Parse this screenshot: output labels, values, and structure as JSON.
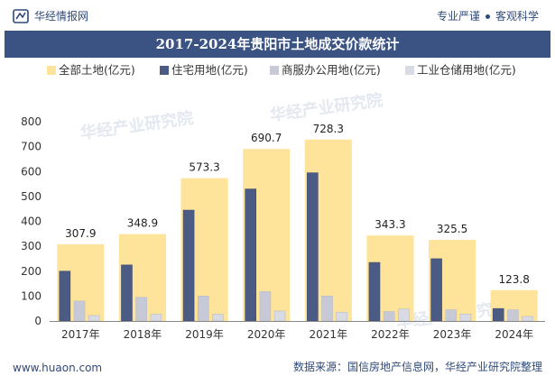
{
  "header": {
    "brand": "华经情报网",
    "tagline_left": "专业严谨",
    "tagline_right": "客观科学"
  },
  "watermark": "华经产业研究院",
  "footer": {
    "url": "www.huaon.com",
    "source": "数据来源：国信房地产信息网，华经产业研究院整理"
  },
  "colors": {
    "total": "#fde49a",
    "residential": "#4b5b83",
    "commercial": "#c7cad6",
    "industrial": "#d9dbe4",
    "title_bg": "#3a5383"
  },
  "chart_data": {
    "type": "bar",
    "title": "2017-2024年贵阳市土地成交价款统计",
    "categories": [
      "2017年",
      "2018年",
      "2019年",
      "2020年",
      "2021年",
      "2022年",
      "2023年",
      "2024年"
    ],
    "series": [
      {
        "name": "全部土地(亿元)",
        "values": [
          307.9,
          348.9,
          573.3,
          690.7,
          728.3,
          343.3,
          325.5,
          123.8
        ]
      },
      {
        "name": "住宅用地(亿元)",
        "values": [
          200,
          225,
          445,
          530,
          595,
          235,
          250,
          50
        ]
      },
      {
        "name": "商服办公用地(亿元)",
        "values": [
          80,
          95,
          100,
          118,
          100,
          38,
          45,
          45
        ]
      },
      {
        "name": "工业仓储用地(亿元)",
        "values": [
          22,
          27,
          27,
          40,
          35,
          48,
          28,
          18
        ]
      }
    ],
    "data_labels": [
      "307.9",
      "348.9",
      "573.3",
      "690.7",
      "728.3",
      "343.3",
      "325.5",
      "123.8"
    ],
    "yticks": [
      "0",
      "100",
      "200",
      "300",
      "400",
      "500",
      "600",
      "700",
      "800"
    ],
    "ylim": [
      0,
      800
    ],
    "xlabel": "",
    "ylabel": "",
    "legend_position": "top",
    "grid": false
  }
}
